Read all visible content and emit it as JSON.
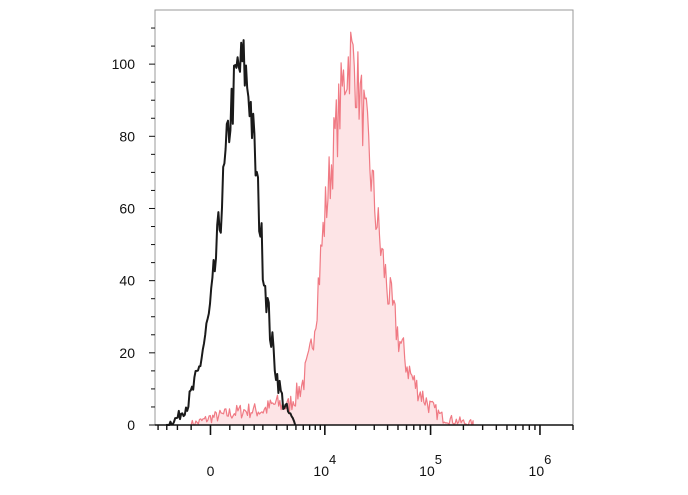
{
  "chart_data": {
    "type": "area",
    "title": "",
    "xlabel": "",
    "ylabel": "",
    "x_scale": "biexponential",
    "ylim": [
      0,
      115
    ],
    "grid": false,
    "y_ticks": [
      {
        "value": 0,
        "label": "0"
      },
      {
        "value": 20,
        "label": "20"
      },
      {
        "value": 40,
        "label": "40"
      },
      {
        "value": 60,
        "label": "60"
      },
      {
        "value": 80,
        "label": "80"
      },
      {
        "value": 100,
        "label": "100"
      }
    ],
    "x_ticks": [
      {
        "value": 0,
        "base": "0",
        "exp": ""
      },
      {
        "value": 10000,
        "base": "10",
        "exp": "4"
      },
      {
        "value": 100000,
        "base": "10",
        "exp": "5"
      },
      {
        "value": 1000000,
        "base": "10",
        "exp": "6"
      }
    ],
    "series": [
      {
        "style": "outline",
        "color": "#1a1a1a",
        "x": [
          -1500,
          -1000,
          -600,
          -300,
          0,
          250,
          500,
          750,
          1000,
          1300,
          1600,
          2000,
          2500,
          3000,
          3600,
          4200,
          5000
        ],
        "y": [
          0,
          2,
          6,
          14,
          32,
          60,
          85,
          98,
          100,
          90,
          70,
          46,
          26,
          14,
          6,
          3,
          0
        ]
      },
      {
        "style": "filled",
        "color": "#f07a84",
        "fill": "#fde4e6",
        "x": [
          -500,
          0,
          1000,
          2000,
          3000,
          4000,
          5000,
          6000,
          7000,
          8000,
          9000,
          10000,
          12000,
          14000,
          16000,
          18000,
          20000,
          25000,
          30000,
          35000,
          40000,
          50000,
          60000,
          70000,
          80000,
          100000,
          130000,
          180000,
          250000
        ],
        "y": [
          0,
          2,
          4,
          4,
          6,
          5,
          8,
          12,
          18,
          30,
          45,
          58,
          75,
          88,
          98,
          103,
          98,
          82,
          62,
          48,
          38,
          25,
          17,
          12,
          9,
          5,
          2,
          1,
          0
        ]
      }
    ]
  }
}
